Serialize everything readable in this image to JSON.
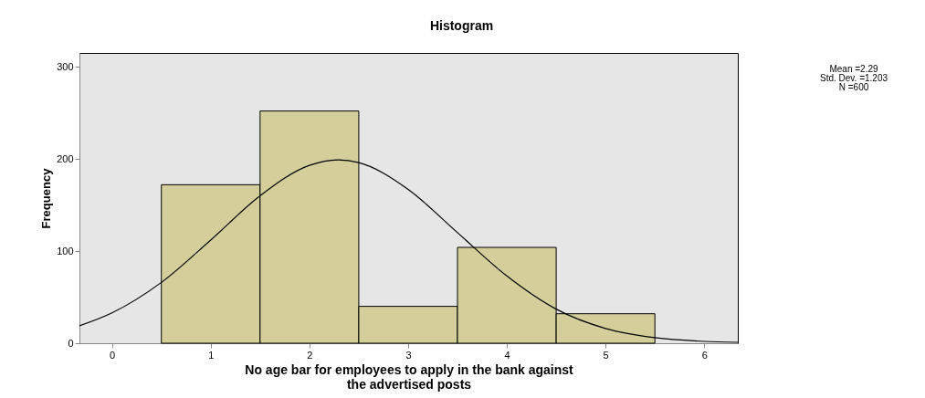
{
  "chart_data": {
    "type": "histogram",
    "title": "Histogram",
    "xlabel": "No age bar for employees to apply in the bank against\nthe advertised posts",
    "ylabel": "Frequency",
    "bins": [
      0.5,
      1.5,
      2.5,
      3.5,
      4.5,
      5.5
    ],
    "values": [
      172,
      252,
      40,
      104,
      32
    ],
    "color": "#d4cf9a",
    "series": [
      {
        "type": "line",
        "color": "#000000",
        "x": [
          -0.33,
          0,
          0.5,
          1,
          1.5,
          2,
          2.29,
          2.5,
          3,
          3.5,
          4,
          4.5,
          5,
          5.5,
          6,
          6.34
        ],
        "values": [
          19,
          33,
          66,
          112,
          160,
          193,
          199,
          196,
          167,
          120,
          73,
          37,
          16,
          6,
          2,
          1
        ]
      }
    ],
    "xlim": [
      -0.33,
      6.34
    ],
    "xticks": [
      0,
      1,
      2,
      3,
      4,
      5,
      6
    ],
    "ylim": [
      0,
      315
    ],
    "yticks": [
      0,
      100,
      200,
      300
    ],
    "grid": false,
    "annotations": [
      "Mean =2.29",
      "Std. Dev. =1.203",
      "N =600"
    ]
  }
}
